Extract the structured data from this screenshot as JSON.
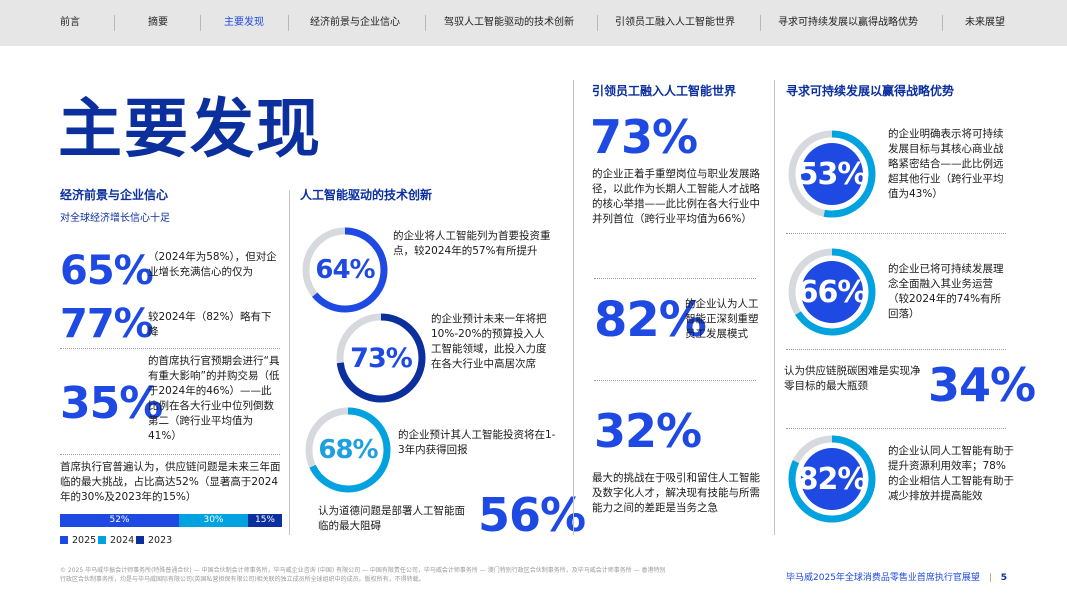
{
  "nav": {
    "items": [
      {
        "label": "前言"
      },
      {
        "label": "摘要"
      },
      {
        "label": "主要发现"
      },
      {
        "label": "经济前景与企业信心"
      },
      {
        "label": "驾驭人工智能驱动的技术创新"
      },
      {
        "label": "引领员工融入人工智能世界"
      },
      {
        "label": "寻求可持续发展以赢得战略优势"
      },
      {
        "label": "未来展望"
      }
    ],
    "active_label": "主要发现"
  },
  "page_title": "主要发现",
  "economy": {
    "heading": "经济前景与企业信心",
    "subheading": "对全球经济增长信心十足",
    "stats": [
      {
        "value": "65%",
        "text": "（2024年为58%），但对企业增长充满信心的仅为"
      },
      {
        "value": "77%",
        "text": "较2024年（82%）略有下降"
      },
      {
        "value": "35%",
        "text": "的首席执行官预期会进行“具有重大影响”的并购交易（低于2024年的46%）——此比例在各大行业中位列倒数第二（跨行业平均值为41%）"
      }
    ],
    "supply_text": "首席执行官普遍认为，供应链问题是未来三年面临的最大挑战，占比高达52%（显著高于2024年的30%及2023年的15%）",
    "bar": [
      {
        "label": "52%",
        "value": 52,
        "color": "#1e49e2"
      },
      {
        "label": "30%",
        "value": 30,
        "color": "#00a3e0"
      },
      {
        "label": "15%",
        "value": 15,
        "color": "#0c2f9e"
      }
    ],
    "legend": [
      {
        "label": "2025",
        "color": "#1e49e2"
      },
      {
        "label": "2024",
        "color": "#00a3e0"
      },
      {
        "label": "2023",
        "color": "#0c2f9e"
      }
    ]
  },
  "ai_tech": {
    "heading": "人工智能驱动的技术创新",
    "rings": [
      {
        "label": "64%",
        "value": 64,
        "color": "#1e49e2",
        "text": "的企业将人工智能列为首要投资重点，较2024年的57%有所提升"
      },
      {
        "label": "73%",
        "value": 73,
        "color": "#0c2f9e",
        "text": "的企业预计未来一年将把10%-20%的预算投入人工智能领域，此投入力度在各大行业中高居次席"
      },
      {
        "label": "68%",
        "value": 68,
        "color": "#00a3e0",
        "text": "的企业预计其人工智能投资将在1-3年内获得回报"
      }
    ],
    "ethics_text": "认为道德问题是部署人工智能面临的最大阻碍",
    "ethics_value": "56%"
  },
  "workforce": {
    "heading": "引领员工融入人工智能世界",
    "stat1": {
      "value": "73%",
      "text": "的企业正着手重塑岗位与职业发展路径，以此作为长期人工智能人才战略的核心举措——此比例在各大行业中并列首位（跨行业平均值为66%）"
    },
    "stat2": {
      "value": "82%",
      "text": "的企业认为人工智能正深刻重塑员工发展模式"
    },
    "stat3": {
      "value": "32%",
      "text": "最大的挑战在于吸引和留住人工智能及数字化人才，解决现有技能与所需能力之间的差距是当务之急"
    }
  },
  "sustain": {
    "heading": "寻求可持续发展以赢得战略优势",
    "rings": [
      {
        "label": "53%",
        "value": 53,
        "color": "#00a3e0",
        "text": "的企业明确表示将可持续发展目标与其核心商业战略紧密结合——此比例远超其他行业（跨行业平均值为43%）"
      },
      {
        "label": "66%",
        "value": 66,
        "color": "#00a3e0",
        "text": "的企业已将可持续发展理念全面融入其业务运营（较2024年的74%有所回落）"
      }
    ],
    "supply_text": "认为供应链脱碳困难是实现净零目标的最大瓶颈",
    "supply_value": "34%",
    "ring3": {
      "label": "82%",
      "value": 82,
      "color": "#00a3e0",
      "text": "的企业认同人工智能有助于提升资源利用效率；78%的企业相信人工智能有助于减少排放并提高能效"
    }
  },
  "footer": {
    "legal": "© 2025 毕马威华振会计师事务所(特殊普通合伙) — 中国合伙制会计师事务所，毕马威企业咨询 (中国) 有限公司 — 中国有限责任公司，毕马威会计师事务所 — 澳门特别行政区合伙制事务所，及毕马威会计师事务所 — 香港特别行政区合伙制事务所，均是与毕马威国际有限公司(英国私营担保有限公司)相关联的独立成员所全球组织中的成员。版权所有，不得转载。",
    "report_title": "毕马威2025年全球消费品零售业首席执行官展望",
    "page_number": "5"
  }
}
